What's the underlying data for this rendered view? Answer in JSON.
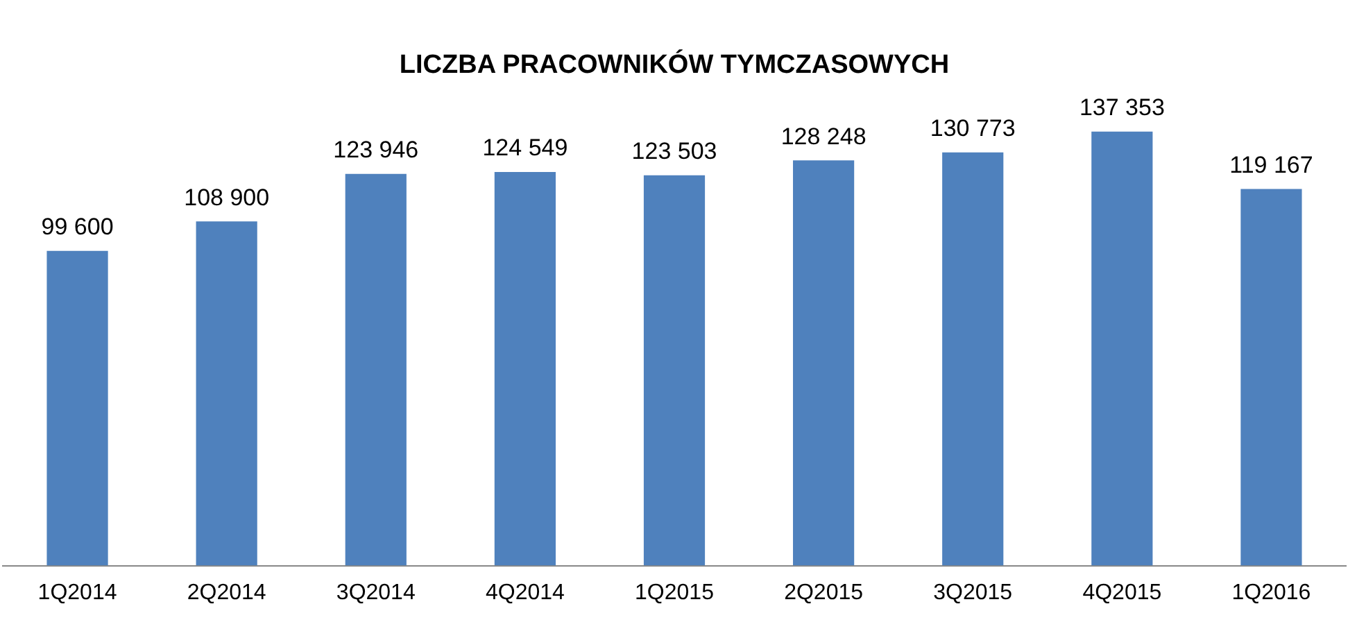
{
  "chart_data": {
    "type": "bar",
    "title": "LICZBA PRACOWNIKÓW TYMCZASOWYCH",
    "categories": [
      "1Q2014",
      "2Q2014",
      "3Q2014",
      "4Q2014",
      "1Q2015",
      "2Q2015",
      "3Q2015",
      "4Q2015",
      "1Q2016"
    ],
    "values": [
      99600,
      108900,
      123946,
      124549,
      123503,
      128248,
      130773,
      137353,
      119167
    ],
    "value_labels": [
      "99 600",
      "108 900",
      "123 946",
      "124 549",
      "123 503",
      "128 248",
      "130 773",
      "137 353",
      "119 167"
    ],
    "color": "#4f81bd",
    "grid": false,
    "legend": false,
    "tick_labels": "x"
  }
}
